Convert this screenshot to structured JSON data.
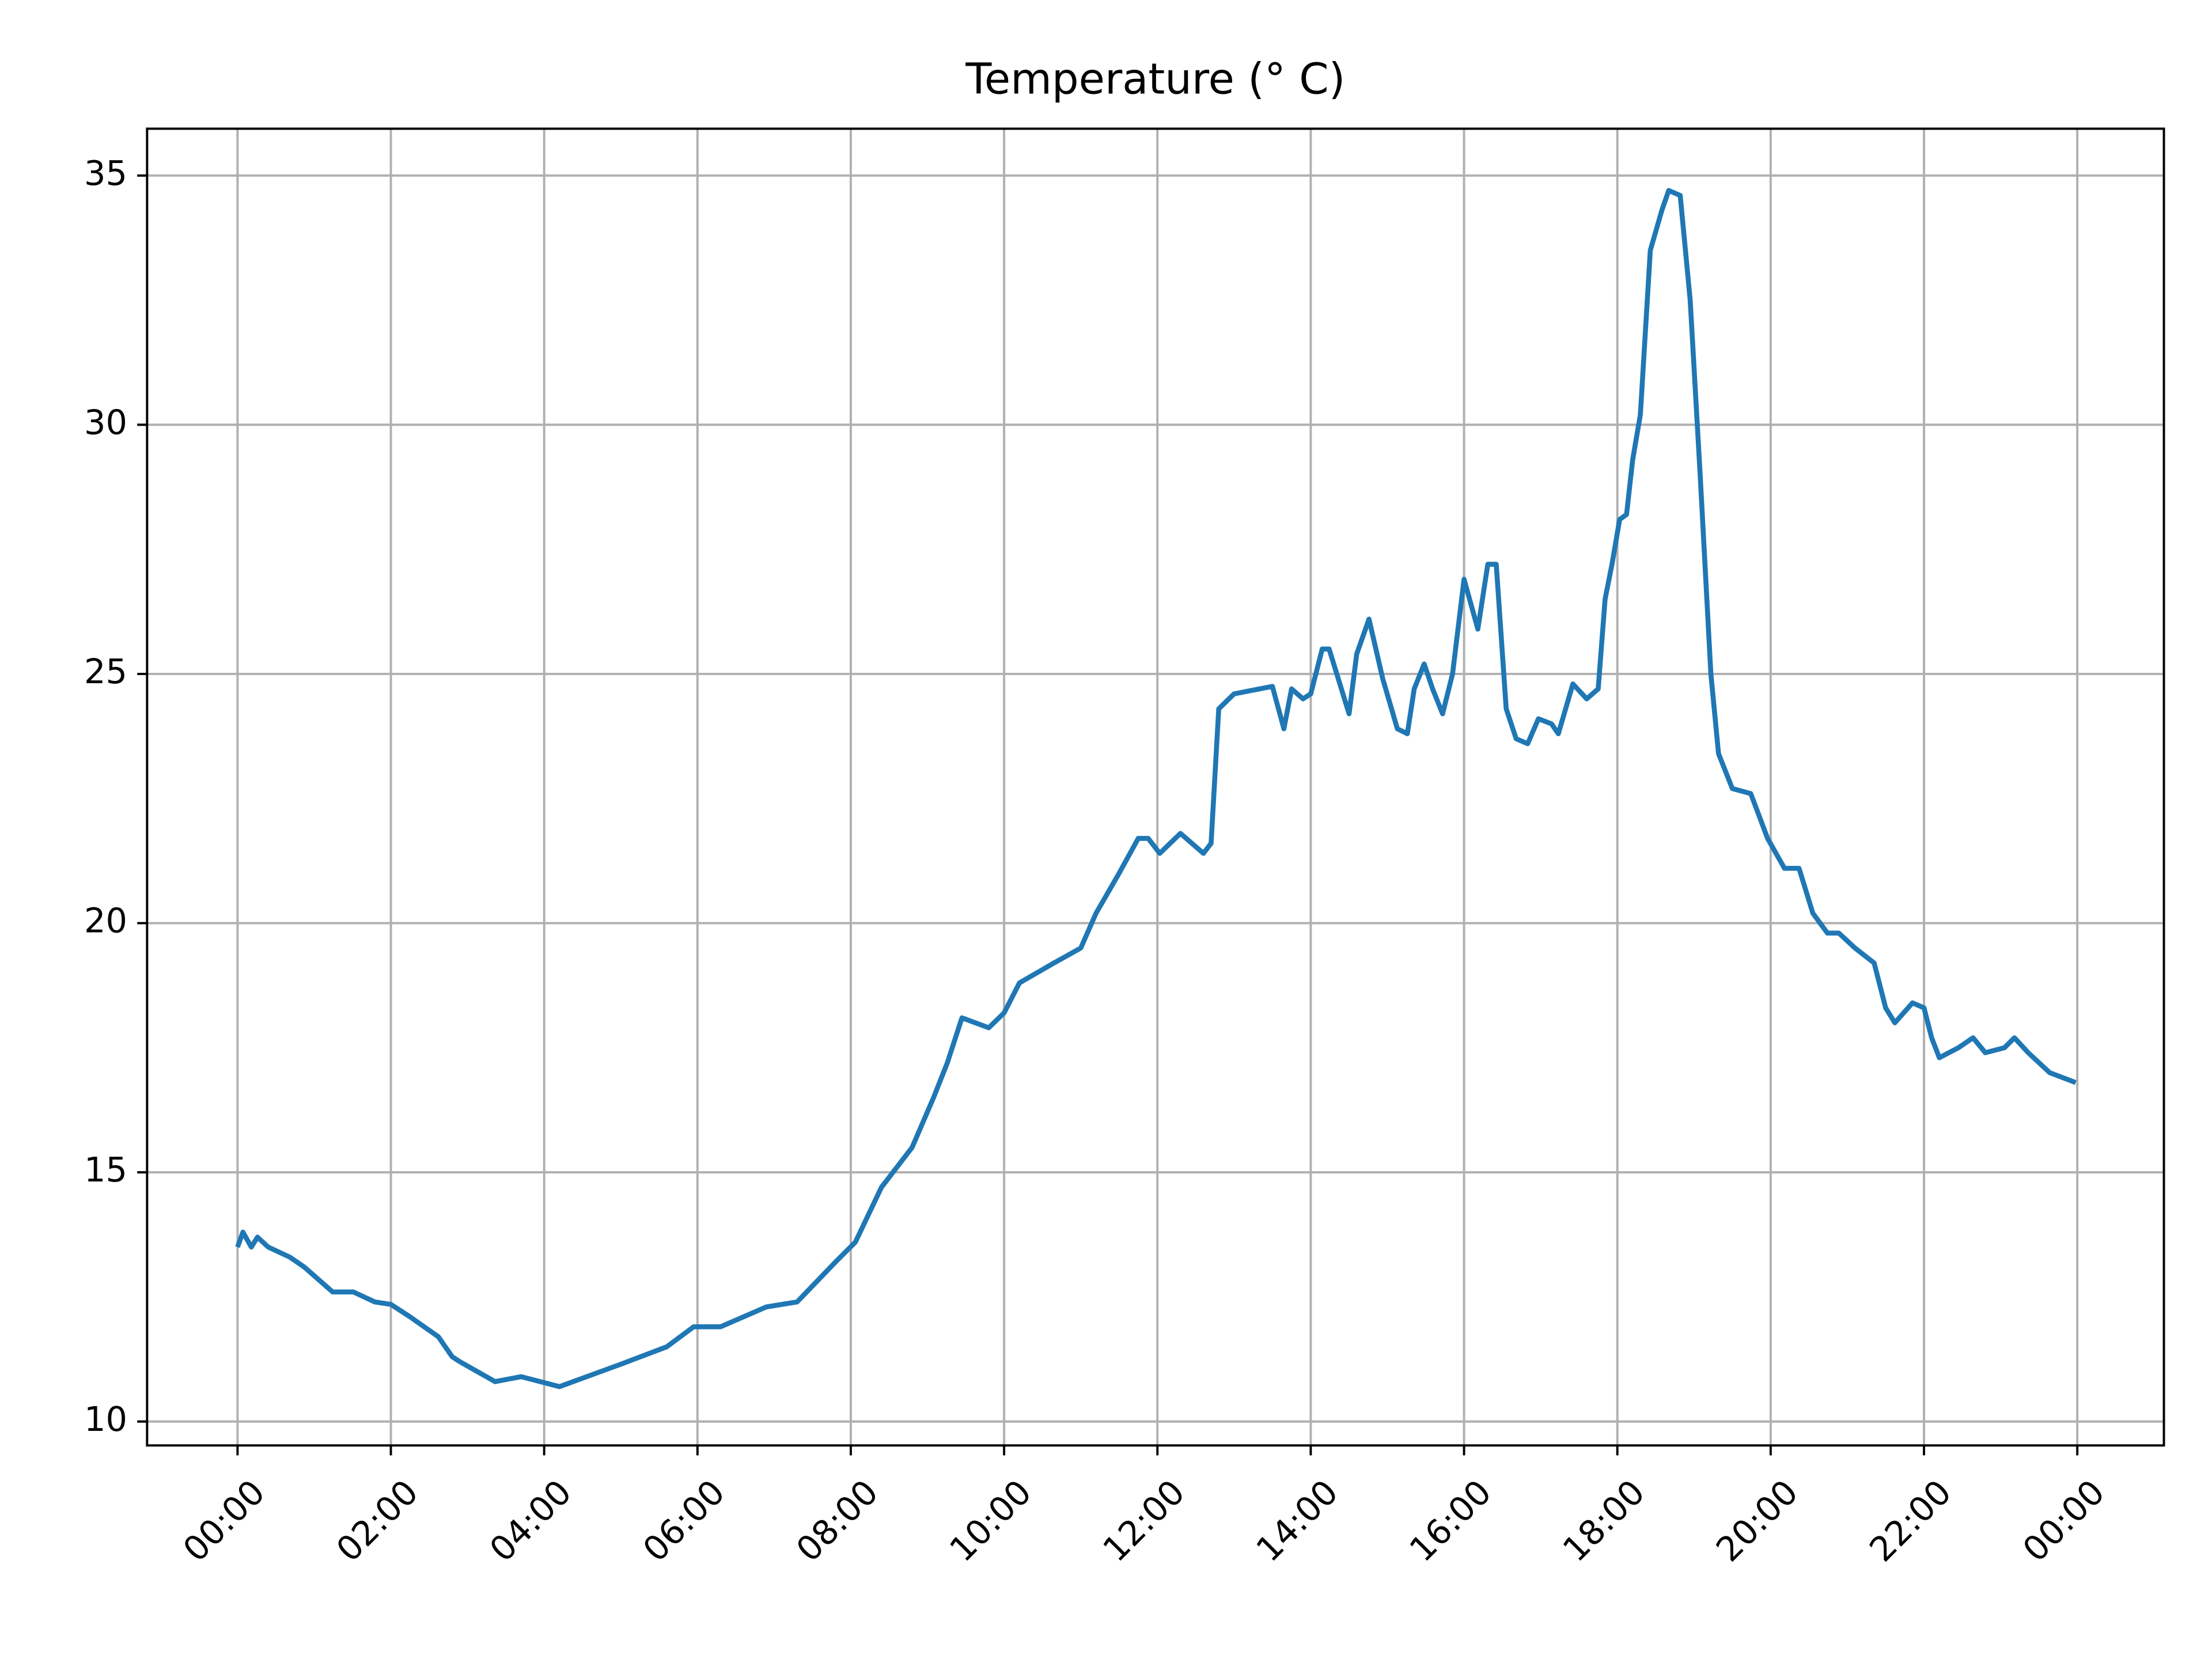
{
  "chart_data": {
    "type": "line",
    "title": "Temperature (° C)",
    "x": [
      0,
      0.07,
      0.18,
      0.26,
      0.4,
      0.68,
      0.87,
      1.24,
      1.51,
      1.79,
      2.0,
      2.25,
      2.62,
      2.8,
      2.9,
      3.36,
      3.7,
      4.2,
      5.0,
      5.6,
      5.95,
      6.3,
      6.9,
      7.3,
      7.8,
      8.06,
      8.4,
      8.8,
      9.08,
      9.26,
      9.45,
      9.8,
      10.0,
      10.2,
      10.65,
      11.0,
      11.2,
      11.5,
      11.75,
      11.88,
      12.03,
      12.3,
      12.6,
      12.7,
      12.8,
      13.0,
      13.5,
      13.65,
      13.75,
      13.9,
      14.0,
      14.15,
      14.24,
      14.5,
      14.6,
      14.76,
      14.94,
      15.13,
      15.26,
      15.35,
      15.48,
      15.59,
      15.72,
      15.85,
      16.0,
      16.18,
      16.31,
      16.42,
      16.55,
      16.68,
      16.83,
      16.97,
      17.14,
      17.23,
      17.42,
      17.6,
      17.75,
      17.84,
      17.93,
      18.03,
      18.12,
      18.2,
      18.3,
      18.43,
      18.58,
      18.67,
      18.82,
      18.95,
      19.08,
      19.22,
      19.32,
      19.5,
      19.74,
      19.96,
      20.18,
      20.37,
      20.55,
      20.74,
      20.89,
      21.1,
      21.35,
      21.5,
      21.62,
      21.85,
      22.0,
      22.1,
      22.2,
      22.45,
      22.64,
      22.8,
      23.05,
      23.18,
      23.36,
      23.64,
      23.98
    ],
    "series": [
      {
        "name": "Temperature",
        "color": "#1f77b4",
        "values": [
          13.5,
          13.8,
          13.5,
          13.7,
          13.5,
          13.3,
          13.1,
          12.6,
          12.6,
          12.4,
          12.35,
          12.1,
          11.7,
          11.3,
          11.2,
          10.8,
          10.9,
          10.7,
          11.15,
          11.5,
          11.9,
          11.9,
          12.3,
          12.4,
          13.2,
          13.6,
          14.7,
          15.5,
          16.5,
          17.2,
          18.1,
          17.9,
          18.2,
          18.8,
          19.2,
          19.5,
          20.2,
          21.0,
          21.7,
          21.7,
          21.4,
          21.8,
          21.4,
          21.6,
          24.3,
          24.6,
          24.75,
          23.9,
          24.7,
          24.5,
          24.6,
          25.5,
          25.5,
          24.2,
          25.4,
          26.1,
          24.9,
          23.9,
          23.8,
          24.7,
          25.2,
          24.7,
          24.2,
          25.0,
          26.9,
          25.9,
          27.2,
          27.2,
          24.3,
          23.7,
          23.6,
          24.1,
          24.0,
          23.8,
          24.8,
          24.5,
          24.7,
          26.5,
          27.2,
          28.1,
          28.2,
          29.3,
          30.2,
          33.5,
          34.3,
          34.7,
          34.6,
          32.5,
          29.0,
          25.0,
          23.4,
          22.7,
          22.6,
          21.7,
          21.1,
          21.1,
          20.2,
          19.8,
          19.8,
          19.5,
          19.2,
          18.3,
          18.0,
          18.4,
          18.3,
          17.7,
          17.3,
          17.5,
          17.7,
          17.4,
          17.5,
          17.7,
          17.4,
          17.0,
          16.8
        ]
      }
    ],
    "xlim": [
      -1.18,
      25.13
    ],
    "ylim": [
      9.52,
      35.94
    ],
    "xticks": [
      {
        "value": 0,
        "label": "00:00"
      },
      {
        "value": 2,
        "label": "02:00"
      },
      {
        "value": 4,
        "label": "04:00"
      },
      {
        "value": 6,
        "label": "06:00"
      },
      {
        "value": 8,
        "label": "08:00"
      },
      {
        "value": 10,
        "label": "10:00"
      },
      {
        "value": 12,
        "label": "12:00"
      },
      {
        "value": 14,
        "label": "14:00"
      },
      {
        "value": 16,
        "label": "16:00"
      },
      {
        "value": 18,
        "label": "18:00"
      },
      {
        "value": 20,
        "label": "20:00"
      },
      {
        "value": 22,
        "label": "22:00"
      },
      {
        "value": 24,
        "label": "00:00"
      }
    ],
    "yticks": [
      10,
      15,
      20,
      25,
      30,
      35
    ],
    "grid": true
  }
}
